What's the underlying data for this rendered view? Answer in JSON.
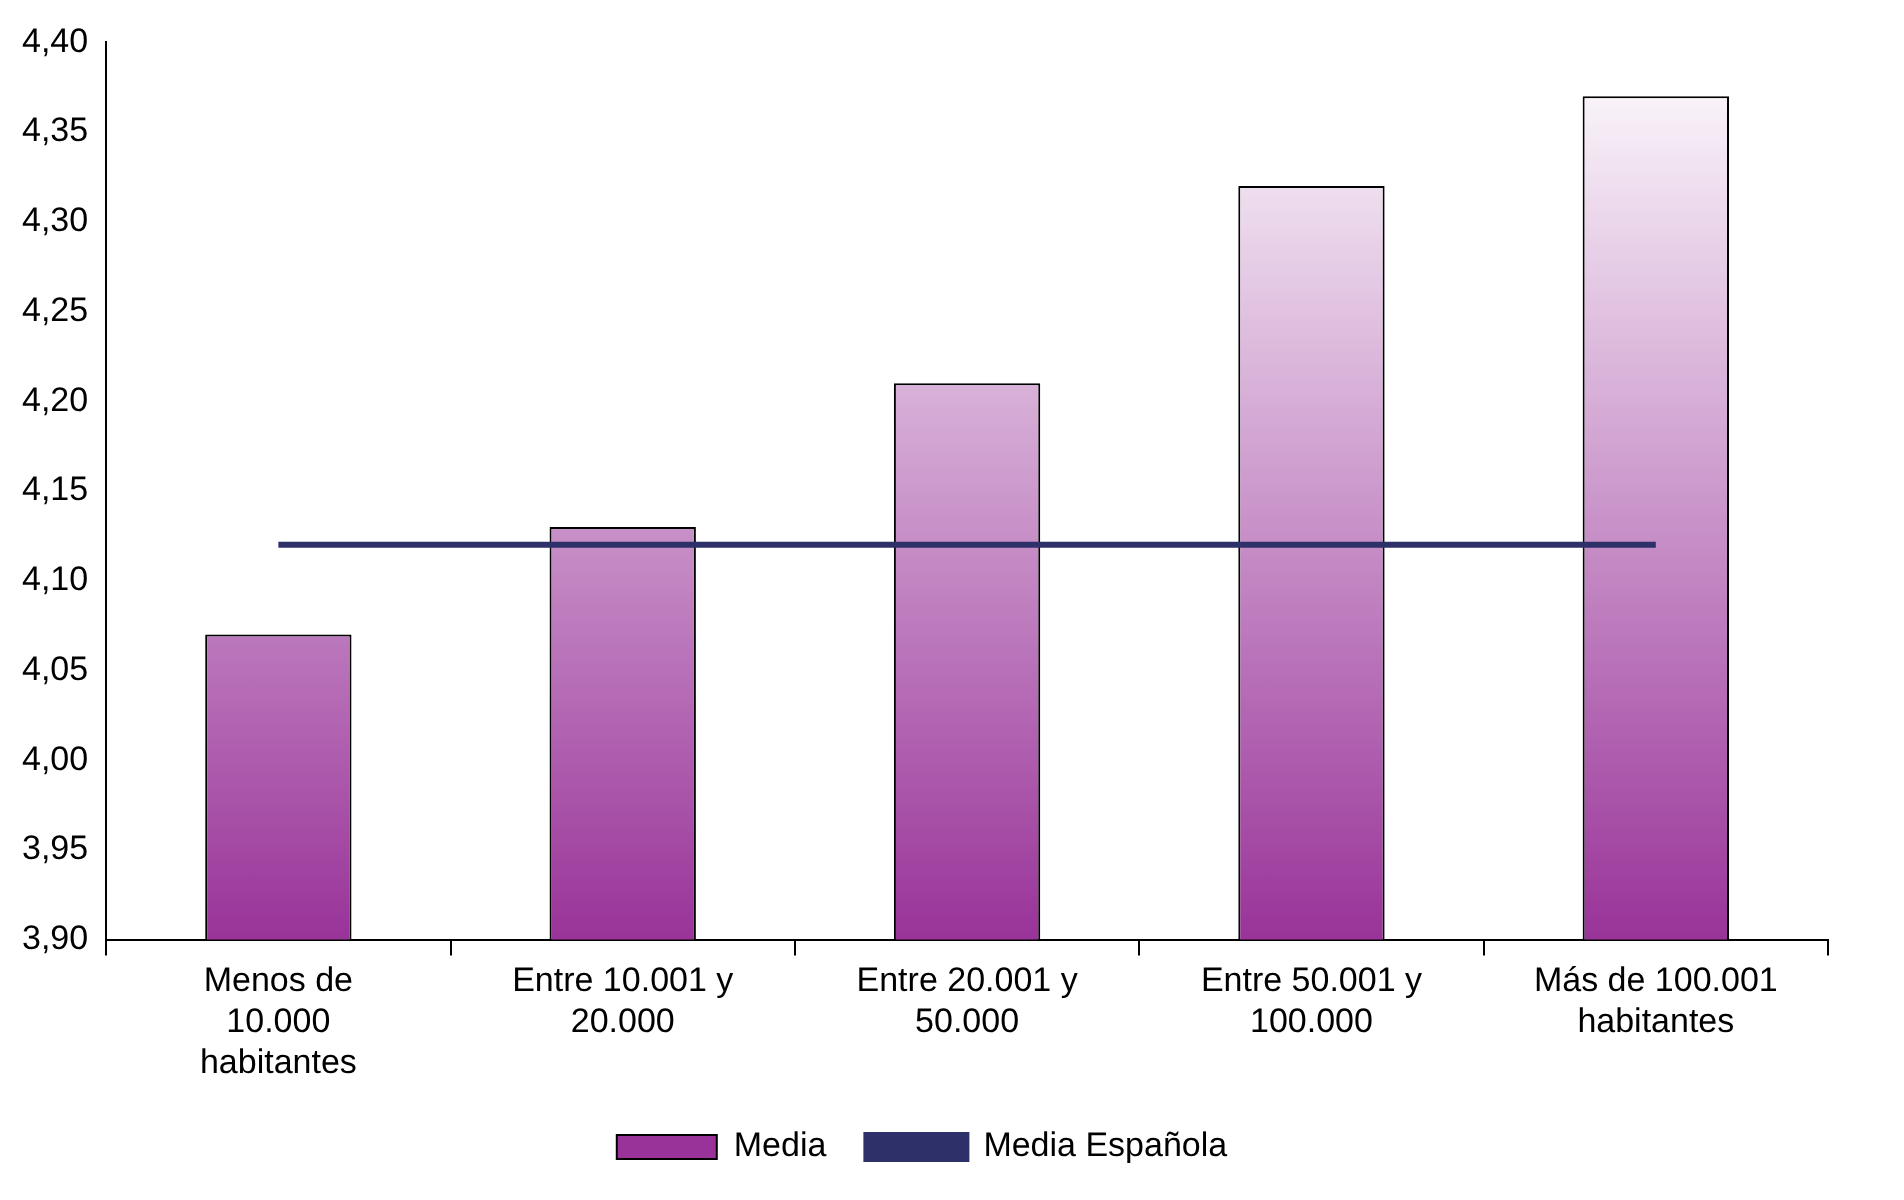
{
  "chart_data": {
    "type": "bar",
    "categories": [
      "Menos de 10.000 habitantes",
      "Entre 10.001 y 20.000",
      "Entre 20.001 y 50.000",
      "Entre 50.001 y 100.000",
      "Más de 100.001 habitantes"
    ],
    "series": [
      {
        "name": "Media",
        "color": "#993399",
        "values": [
          4.07,
          4.13,
          4.21,
          4.32,
          4.37
        ]
      },
      {
        "name": "Media Española",
        "type": "line",
        "color": "#2e3169",
        "values": [
          4.12,
          4.12,
          4.12,
          4.12,
          4.12
        ]
      }
    ],
    "ylim": [
      3.9,
      4.4
    ],
    "yticks": [
      {
        "value": 3.9,
        "label": "3,90"
      },
      {
        "value": 3.95,
        "label": "3,95"
      },
      {
        "value": 4.0,
        "label": "4,00"
      },
      {
        "value": 4.05,
        "label": "4,05"
      },
      {
        "value": 4.1,
        "label": "4,10"
      },
      {
        "value": 4.15,
        "label": "4,15"
      },
      {
        "value": 4.2,
        "label": "4,20"
      },
      {
        "value": 4.25,
        "label": "4,25"
      },
      {
        "value": 4.3,
        "label": "4,30"
      },
      {
        "value": 4.35,
        "label": "4,35"
      },
      {
        "value": 4.4,
        "label": "4,40"
      }
    ],
    "legend": "bottom",
    "marker": "none"
  }
}
